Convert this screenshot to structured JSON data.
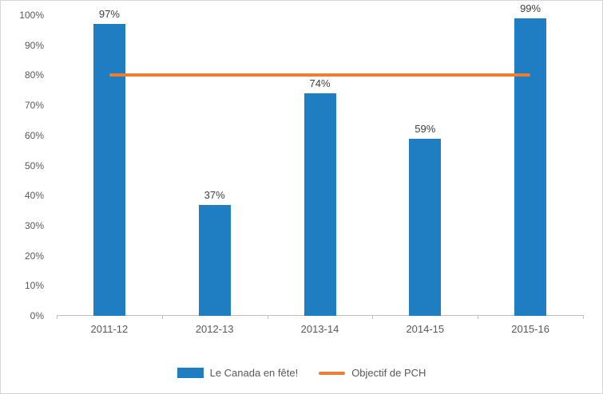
{
  "chart_data": {
    "type": "bar",
    "categories": [
      "2011-12",
      "2012-13",
      "2013-14",
      "2014-15",
      "2015-16"
    ],
    "series": [
      {
        "name": "Le Canada en fête!",
        "type": "bar",
        "values": [
          97,
          37,
          74,
          59,
          99
        ],
        "color": "#1f7ec2"
      },
      {
        "name": "Objectif de PCH",
        "type": "line",
        "values": [
          80,
          80,
          80,
          80,
          80
        ],
        "color": "#ed7d31"
      }
    ],
    "data_labels": [
      "97%",
      "37%",
      "74%",
      "59%",
      "99%"
    ],
    "y_ticks": [
      "0%",
      "10%",
      "20%",
      "30%",
      "40%",
      "50%",
      "60%",
      "70%",
      "80%",
      "90%",
      "100%"
    ],
    "ylim": [
      0,
      100
    ],
    "grid": false,
    "legend_position": "bottom"
  },
  "legend": {
    "items": [
      {
        "label": "Le Canada en fête!",
        "swatch": "bar",
        "color": "#1f7ec2"
      },
      {
        "label": "Objectif de PCH",
        "swatch": "line",
        "color": "#ed7d31"
      }
    ]
  },
  "colors": {
    "bar": "#1f7ec2",
    "target_line": "#ed7d31",
    "axis": "#bfbfbf",
    "tick_text": "#595959",
    "data_label_text": "#404040",
    "frame_border": "#d6d6d6",
    "background": "#ffffff"
  }
}
